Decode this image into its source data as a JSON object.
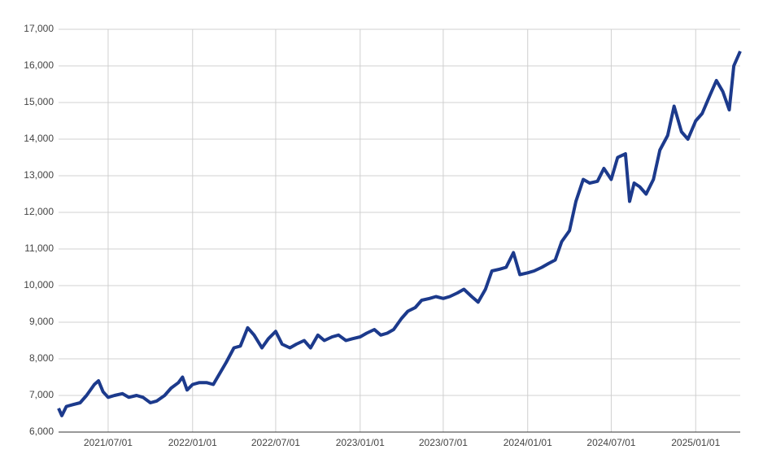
{
  "chart_data": {
    "type": "line",
    "x": [
      "2021/03/15",
      "2021/03/22",
      "2021/04/01",
      "2021/04/15",
      "2021/05/01",
      "2021/05/15",
      "2021/06/01",
      "2021/06/10",
      "2021/06/20",
      "2021/07/01",
      "2021/07/15",
      "2021/08/01",
      "2021/08/15",
      "2021/09/01",
      "2021/09/15",
      "2021/10/01",
      "2021/10/15",
      "2021/11/01",
      "2021/11/15",
      "2021/12/01",
      "2021/12/10",
      "2021/12/20",
      "2022/01/01",
      "2022/01/15",
      "2022/02/01",
      "2022/02/15",
      "2022/03/01",
      "2022/03/15",
      "2022/04/01",
      "2022/04/15",
      "2022/05/01",
      "2022/05/15",
      "2022/06/01",
      "2022/06/15",
      "2022/07/01",
      "2022/07/15",
      "2022/08/01",
      "2022/08/15",
      "2022/09/01",
      "2022/09/15",
      "2022/10/01",
      "2022/10/15",
      "2022/11/01",
      "2022/11/15",
      "2022/12/01",
      "2022/12/15",
      "2023/01/01",
      "2023/01/15",
      "2023/02/01",
      "2023/02/15",
      "2023/03/01",
      "2023/03/15",
      "2023/04/01",
      "2023/04/15",
      "2023/05/01",
      "2023/05/15",
      "2023/06/01",
      "2023/06/15",
      "2023/07/01",
      "2023/07/15",
      "2023/08/01",
      "2023/08/15",
      "2023/09/01",
      "2023/09/15",
      "2023/10/01",
      "2023/10/15",
      "2023/11/01",
      "2023/11/15",
      "2023/12/01",
      "2023/12/15",
      "2024/01/01",
      "2024/01/15",
      "2024/02/01",
      "2024/02/15",
      "2024/03/01",
      "2024/03/15",
      "2024/04/01",
      "2024/04/15",
      "2024/05/01",
      "2024/05/15",
      "2024/06/01",
      "2024/06/15",
      "2024/07/01",
      "2024/07/15",
      "2024/08/01",
      "2024/08/10",
      "2024/08/20",
      "2024/09/01",
      "2024/09/15",
      "2024/10/01",
      "2024/10/15",
      "2024/11/01",
      "2024/11/15",
      "2024/12/01",
      "2024/12/15",
      "2025/01/01",
      "2025/01/15",
      "2025/02/01",
      "2025/02/15",
      "2025/03/01",
      "2025/03/15",
      "2025/03/25",
      "2025/04/08"
    ],
    "series": [
      {
        "color": "#1c3a8c",
        "values": [
          6650,
          6450,
          6700,
          6750,
          6800,
          7000,
          7300,
          7400,
          7100,
          6950,
          7000,
          7050,
          6950,
          7000,
          6950,
          6800,
          6850,
          7000,
          7200,
          7350,
          7500,
          7150,
          7300,
          7350,
          7350,
          7300,
          7600,
          7900,
          8300,
          8350,
          8850,
          8650,
          8300,
          8550,
          8750,
          8400,
          8300,
          8400,
          8500,
          8300,
          8650,
          8500,
          8600,
          8650,
          8500,
          8550,
          8600,
          8700,
          8800,
          8650,
          8700,
          8800,
          9100,
          9300,
          9400,
          9600,
          9650,
          9700,
          9650,
          9700,
          9800,
          9900,
          9700,
          9550,
          9900,
          10400,
          10450,
          10500,
          10900,
          10300,
          10350,
          10400,
          10500,
          10600,
          10700,
          11200,
          11500,
          12300,
          12900,
          12800,
          12850,
          13200,
          12900,
          13500,
          13600,
          12300,
          12800,
          12700,
          12500,
          12900,
          13700,
          14100,
          14900,
          14200,
          14000,
          14500,
          14700,
          15200,
          15600,
          15300,
          14800,
          16000,
          16400
        ]
      }
    ],
    "xlim": [
      "2021/03/15",
      "2025/04/08"
    ],
    "xticks": [
      "2021/07/01",
      "2022/01/01",
      "2022/07/01",
      "2023/01/01",
      "2023/07/01",
      "2024/01/01",
      "2024/07/01",
      "2025/01/01"
    ],
    "ylim": [
      6000,
      17000
    ],
    "yticks": [
      {
        "value": 6000,
        "label": "6,000"
      },
      {
        "value": 7000,
        "label": "7,000"
      },
      {
        "value": 8000,
        "label": "8,000"
      },
      {
        "value": 9000,
        "label": "9,000"
      },
      {
        "value": 10000,
        "label": "10,000"
      },
      {
        "value": 11000,
        "label": "11,000"
      },
      {
        "value": 12000,
        "label": "12,000"
      },
      {
        "value": 13000,
        "label": "13,000"
      },
      {
        "value": 14000,
        "label": "14,000"
      },
      {
        "value": 15000,
        "label": "15,000"
      },
      {
        "value": 16000,
        "label": "16,000"
      },
      {
        "value": 17000,
        "label": "17,000"
      }
    ],
    "grid": true
  }
}
